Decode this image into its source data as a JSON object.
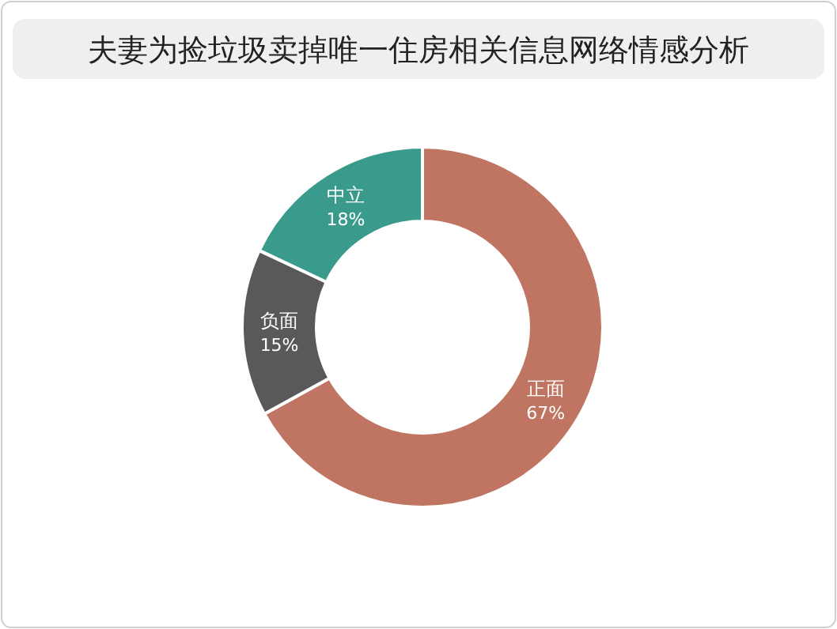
{
  "chart_data": {
    "type": "donut",
    "title": "夫妻为捡垃圾卖掉唯一住房相关信息网络情感分析",
    "categories": [
      "正面",
      "负面",
      "中立"
    ],
    "values": [
      67,
      15,
      18
    ],
    "colors": [
      "#c07563",
      "#595959",
      "#3a9a8b"
    ],
    "value_labels": [
      "67%",
      "15%",
      "18%"
    ]
  }
}
